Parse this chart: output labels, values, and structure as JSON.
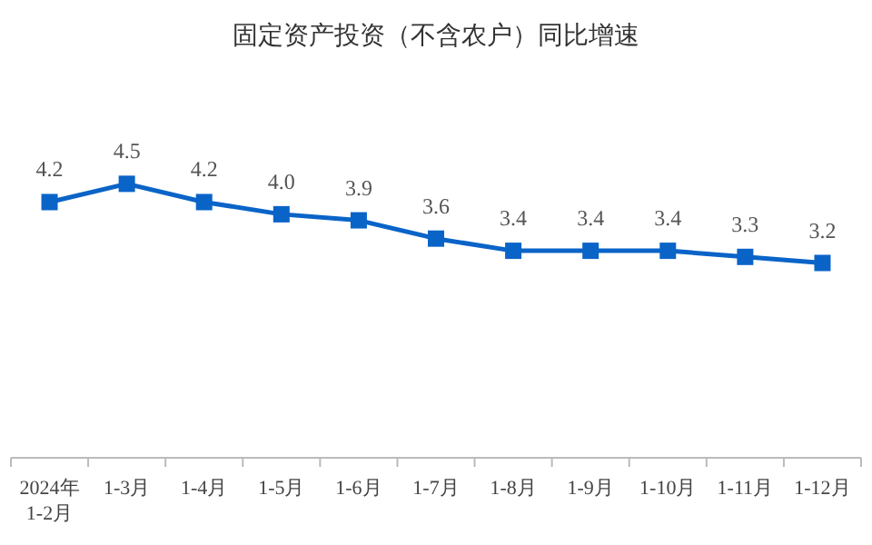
{
  "chart_data": {
    "type": "line",
    "title": "固定资产投资（不含农户）同比增速",
    "categories": [
      "2024年1-2月",
      "1-3月",
      "1-4月",
      "1-5月",
      "1-6月",
      "1-7月",
      "1-8月",
      "1-9月",
      "1-10月",
      "1-11月",
      "1-12月"
    ],
    "values": [
      4.2,
      4.5,
      4.2,
      4.0,
      3.9,
      3.6,
      3.4,
      3.4,
      3.4,
      3.3,
      3.2
    ],
    "value_labels": [
      "4.2",
      "4.5",
      "4.2",
      "4.0",
      "3.9",
      "3.6",
      "3.4",
      "3.4",
      "3.4",
      "3.3",
      "3.2"
    ],
    "color": "#0a64c8",
    "marker": "square",
    "line_style": "solid"
  }
}
